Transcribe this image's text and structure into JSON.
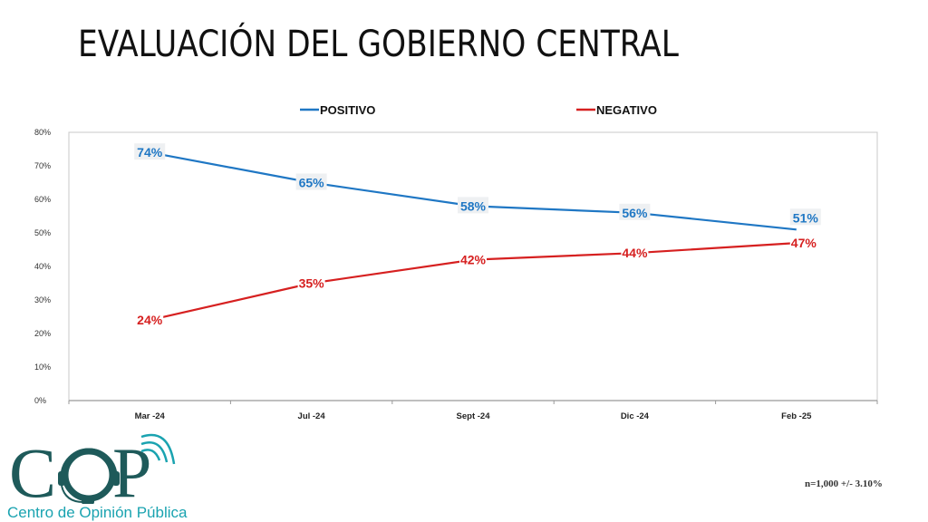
{
  "page": {
    "title": "EVALUACIÓN DEL GOBIERNO CENTRAL",
    "footnote": "n=1,000 +/- 3.10%",
    "logo": {
      "acronym": "COP",
      "subtitle": "Centro de Opinión Pública",
      "color": "#1e5a5a",
      "accent": "#1aa3b0"
    }
  },
  "chart_data": {
    "type": "line",
    "title": "EVALUACIÓN DEL GOBIERNO CENTRAL",
    "xlabel": "",
    "ylabel": "",
    "categories": [
      "Mar -24",
      "Jul -24",
      "Sept -24",
      "Dic -24",
      "Feb -25"
    ],
    "series": [
      {
        "name": "POSITIVO",
        "color": "#1f77c4",
        "values": [
          74,
          65,
          58,
          56,
          51
        ],
        "labels": [
          "74%",
          "65%",
          "58%",
          "56%",
          "51%"
        ]
      },
      {
        "name": "NEGATIVO",
        "color": "#d62020",
        "values": [
          24,
          35,
          42,
          44,
          47
        ],
        "labels": [
          "24%",
          "35%",
          "42%",
          "44%",
          "47%"
        ]
      }
    ],
    "ylim": [
      0,
      80
    ],
    "yticks": [
      0,
      10,
      20,
      30,
      40,
      50,
      60,
      70,
      80
    ],
    "ytick_labels": [
      "0%",
      "10%",
      "20%",
      "30%",
      "40%",
      "50%",
      "60%",
      "70%",
      "80%"
    ],
    "grid": false,
    "legend": "top-center"
  }
}
